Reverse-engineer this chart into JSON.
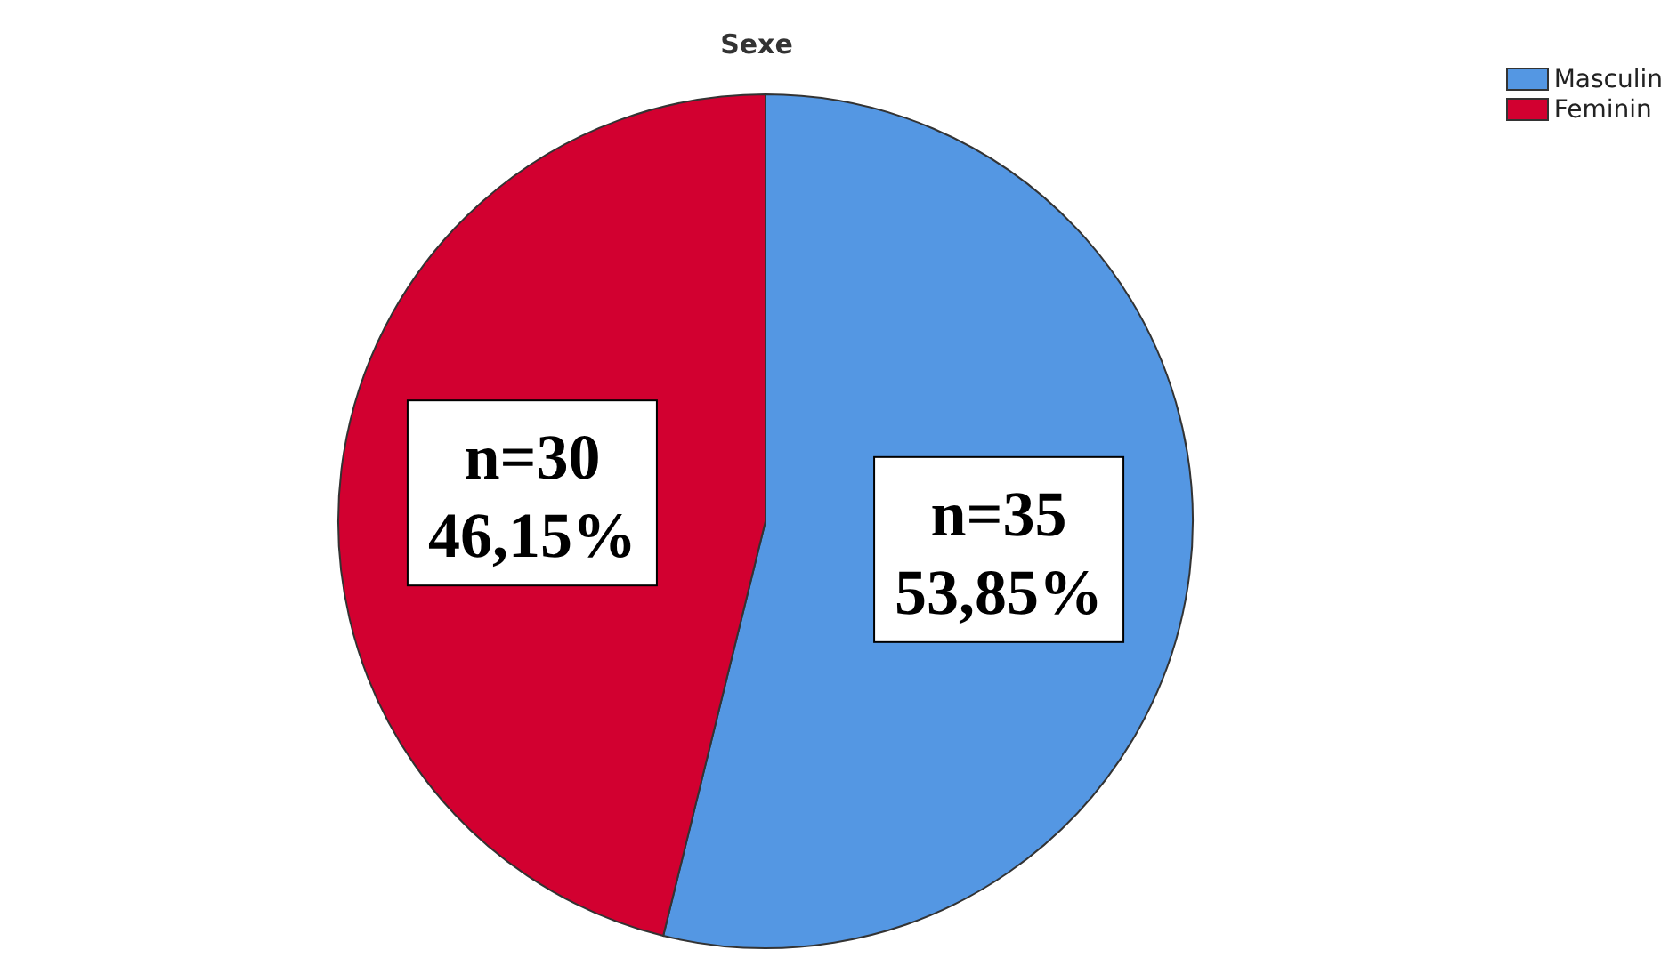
{
  "chart_data": {
    "type": "pie",
    "title": "Sexe",
    "categories": [
      "Masculin",
      "Feminin"
    ],
    "values": [
      35,
      30
    ],
    "colors": [
      "#5497e3",
      "#d20030"
    ],
    "value_labels": [
      "n=35\n53,85%",
      "n=30\n46,15%"
    ],
    "legend": "top right"
  }
}
